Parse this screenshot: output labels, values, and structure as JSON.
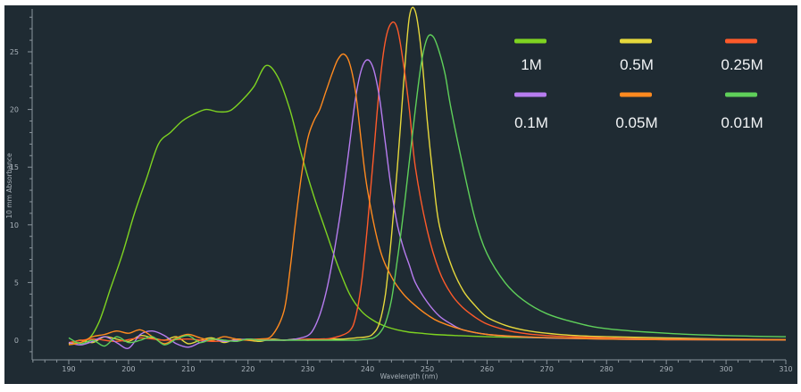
{
  "chart_data": {
    "type": "line",
    "title": "",
    "xlabel": "Wavelength (nm)",
    "ylabel": "10 mm Absorbance",
    "xlim": [
      180,
      310
    ],
    "ylim": [
      -1.5,
      29
    ],
    "x_ticks": [
      190,
      200,
      210,
      220,
      230,
      240,
      250,
      260,
      270,
      280,
      290,
      300,
      310
    ],
    "y_ticks": [
      0,
      5,
      10,
      15,
      20,
      25
    ],
    "grid": false,
    "legend_position": "top-right",
    "background": "#1f2b33",
    "series": [
      {
        "name": "1M",
        "color": "#7ed321",
        "x": [
          190,
          193,
          195,
          197,
          199,
          201,
          203,
          205,
          207,
          209,
          211,
          213,
          215,
          217,
          219,
          221,
          223,
          225,
          227,
          229,
          231,
          233,
          235,
          237,
          239,
          241,
          243,
          245,
          247,
          249,
          251,
          255,
          260,
          270,
          290,
          310
        ],
        "y": [
          -0.3,
          0,
          1.5,
          4.5,
          7.5,
          11,
          14,
          17,
          18,
          19,
          19.6,
          20,
          19.8,
          19.9,
          20.8,
          22,
          23.8,
          22.8,
          20,
          16,
          12.5,
          9.5,
          6.5,
          4,
          2.5,
          1.7,
          1.2,
          0.9,
          0.7,
          0.6,
          0.5,
          0.4,
          0.3,
          0.2,
          0.1,
          0.05
        ]
      },
      {
        "name": "0.5M",
        "color": "#e6d83c",
        "x": [
          190,
          192,
          194,
          196,
          198,
          200,
          202,
          204,
          206,
          208,
          210,
          212,
          214,
          216,
          218,
          220,
          222,
          224,
          226,
          228,
          230,
          232,
          234,
          236,
          238,
          240,
          241,
          242,
          243,
          244,
          245,
          246,
          247,
          248,
          249,
          250,
          251,
          252,
          254,
          256,
          258,
          260,
          263,
          266,
          270,
          275,
          280,
          290,
          300,
          310
        ],
        "y": [
          -0.3,
          0,
          -0.2,
          0.3,
          0.1,
          -0.1,
          0.4,
          0.2,
          0,
          0.3,
          -0.3,
          0,
          0.2,
          -0.2,
          0.1,
          0,
          -0.1,
          0.1,
          0,
          0.1,
          0,
          0.1,
          0.1,
          0.1,
          0.2,
          0.3,
          0.6,
          1.5,
          4,
          9,
          15,
          22,
          28,
          28.5,
          25,
          19,
          14,
          10,
          6.5,
          4.3,
          3,
          2,
          1.3,
          0.9,
          0.6,
          0.4,
          0.3,
          0.2,
          0.1,
          0.05
        ]
      },
      {
        "name": "0.25M",
        "color": "#ff5a2a",
        "x": [
          190,
          194,
          198,
          202,
          206,
          210,
          214,
          218,
          222,
          226,
          230,
          233,
          235,
          237,
          238,
          239,
          240,
          241,
          242,
          243,
          244,
          245,
          246,
          247,
          248,
          250,
          252,
          254,
          256,
          258,
          260,
          263,
          266,
          270,
          280,
          290,
          310
        ],
        "y": [
          -0.2,
          0.1,
          -0.1,
          0.2,
          0,
          0.1,
          -0.1,
          0,
          0.1,
          0,
          0.1,
          0.1,
          0.3,
          0.8,
          2,
          5,
          10,
          16,
          22,
          26,
          27.5,
          27,
          24,
          20,
          15,
          9.5,
          6,
          4,
          2.8,
          2,
          1.4,
          0.9,
          0.6,
          0.4,
          0.2,
          0.1,
          0.05
        ]
      },
      {
        "name": "0.1M",
        "color": "#b77cf0",
        "x": [
          190,
          192,
          194,
          196,
          198,
          200,
          202,
          204,
          206,
          208,
          210,
          212,
          214,
          216,
          218,
          220,
          222,
          224,
          226,
          228,
          230,
          231,
          232,
          233,
          234,
          235,
          236,
          237,
          238,
          239,
          240,
          241,
          242,
          243,
          244,
          245,
          246,
          247,
          248,
          250,
          252,
          254,
          256,
          260,
          265,
          270,
          280,
          290,
          310
        ],
        "y": [
          -0.2,
          -0.4,
          -0.1,
          0.3,
          -0.2,
          -0.7,
          0.5,
          0.8,
          0.4,
          -0.3,
          -0.6,
          -0.2,
          0.1,
          -0.1,
          0,
          0.1,
          0,
          0,
          0,
          0.1,
          0.4,
          1,
          2.2,
          4,
          6.5,
          9.5,
          13,
          17,
          21,
          23.5,
          24.3,
          23.5,
          21,
          17,
          13,
          10,
          8,
          6.5,
          5,
          3.3,
          2.1,
          1.4,
          0.9,
          0.5,
          0.3,
          0.2,
          0.1,
          0.05,
          0.02
        ]
      },
      {
        "name": "0.05M",
        "color": "#ff8a1f",
        "x": [
          190,
          192,
          194,
          196,
          198,
          200,
          202,
          204,
          206,
          208,
          210,
          212,
          214,
          216,
          218,
          220,
          222,
          224,
          226,
          227,
          228,
          229,
          230,
          231,
          232,
          233,
          234,
          235,
          236,
          237,
          238,
          239,
          240,
          242,
          244,
          246,
          248,
          250,
          252,
          256,
          260,
          266,
          272,
          280,
          290,
          310
        ],
        "y": [
          -0.4,
          -0.2,
          0.3,
          0.5,
          0.8,
          0.6,
          0.9,
          0.3,
          -0.3,
          0.2,
          0.5,
          0.2,
          0,
          0.3,
          0.1,
          0,
          0.1,
          0.4,
          2.5,
          6,
          10.5,
          14.5,
          17.5,
          19,
          20,
          21.5,
          23,
          24.3,
          24.8,
          24,
          21.5,
          17,
          13,
          8,
          5.5,
          4,
          3,
          2.2,
          1.6,
          0.9,
          0.5,
          0.3,
          0.2,
          0.1,
          0.05,
          0.02
        ]
      },
      {
        "name": "0.01M",
        "color": "#5fd05a",
        "x": [
          190,
          192,
          194,
          196,
          198,
          200,
          202,
          204,
          206,
          208,
          210,
          212,
          214,
          216,
          218,
          220,
          222,
          224,
          226,
          230,
          234,
          238,
          240,
          241,
          242,
          243,
          244,
          245,
          246,
          247,
          248,
          249,
          250,
          251,
          252,
          253,
          254,
          256,
          258,
          260,
          263,
          266,
          270,
          275,
          280,
          290,
          300,
          310
        ],
        "y": [
          0.2,
          -0.3,
          0,
          -0.5,
          0.3,
          -0.2,
          0,
          0.3,
          -0.4,
          0.1,
          0.4,
          -0.2,
          0.1,
          0,
          -0.1,
          0.1,
          0,
          0,
          0,
          0,
          0,
          0,
          0.1,
          0.2,
          0.6,
          1.5,
          3.5,
          7,
          11,
          15.5,
          20,
          24,
          26.2,
          26.3,
          25,
          23,
          20,
          15,
          10.5,
          7.5,
          5,
          3.5,
          2.3,
          1.5,
          1,
          0.6,
          0.4,
          0.3
        ]
      }
    ]
  }
}
